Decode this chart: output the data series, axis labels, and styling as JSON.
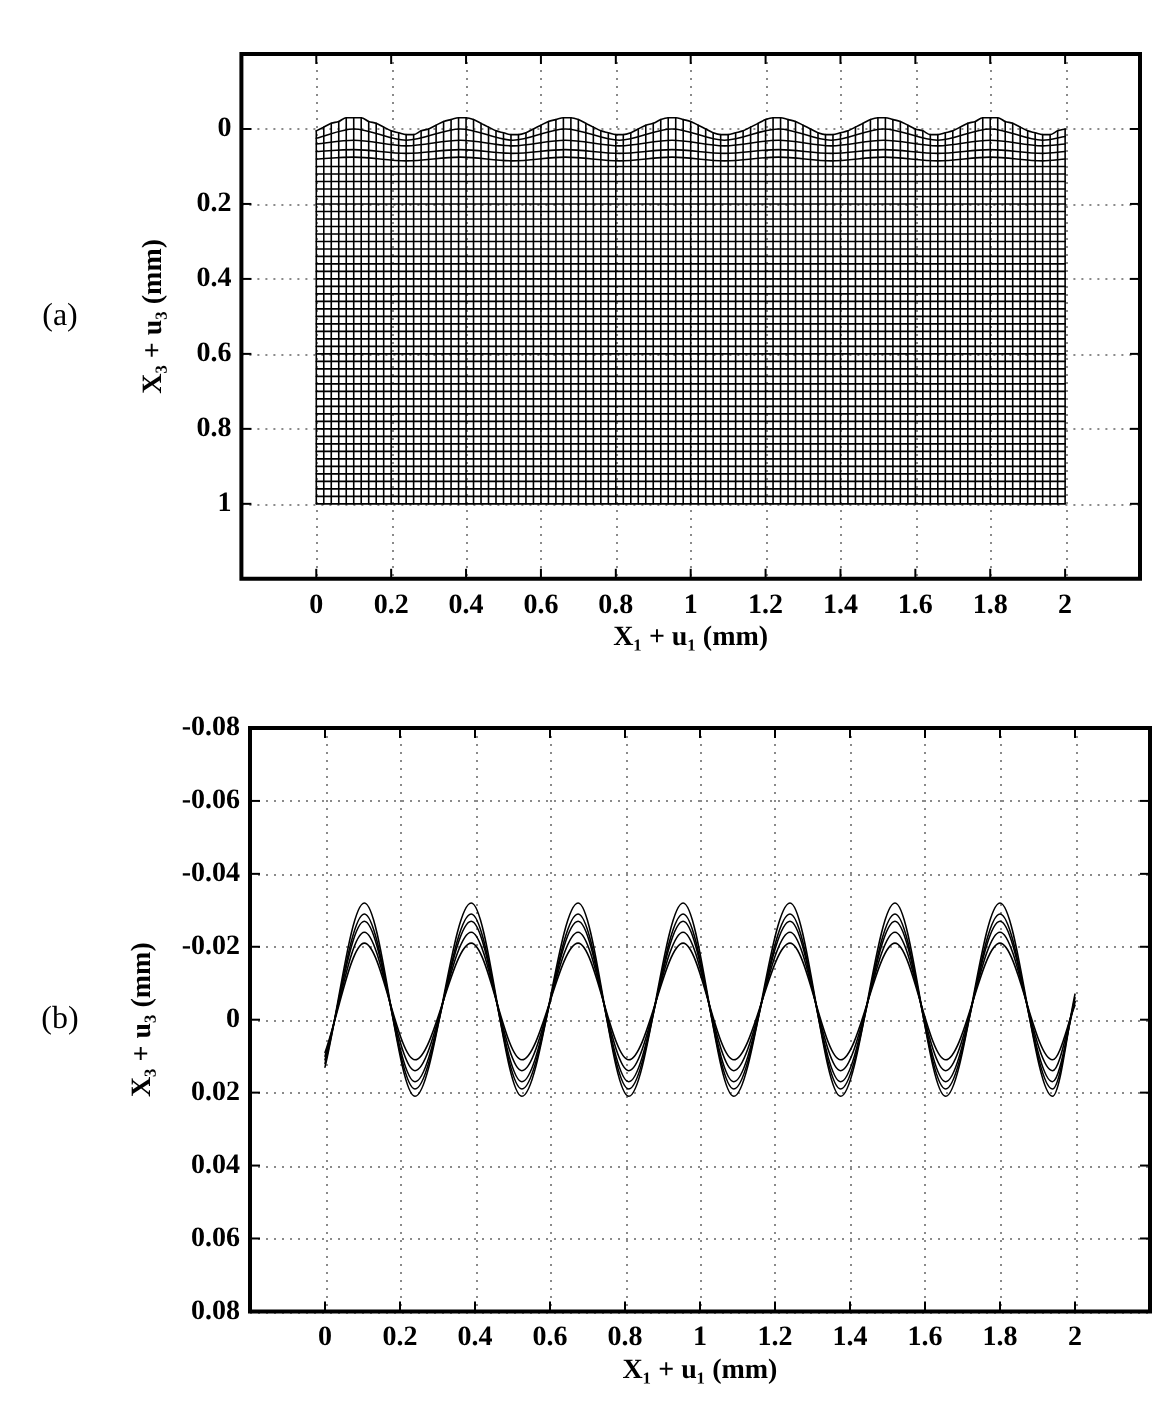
{
  "chart_data": [
    {
      "type": "line",
      "annotations": [
        "(a)"
      ],
      "xlabel": "X₁ + u₁ (mm)",
      "ylabel": "X₃ + u₃ (mm)",
      "xlim": [
        -0.2,
        2.2
      ],
      "ylim": [
        1.2,
        -0.2
      ],
      "xticks": [
        0,
        0.2,
        0.4,
        0.6,
        0.8,
        1,
        1.2,
        1.4,
        1.6,
        1.8,
        2
      ],
      "yticks": [
        0,
        0.2,
        0.4,
        0.6,
        0.8,
        1
      ],
      "grid": true,
      "marker": "none",
      "x": [
        0,
        0.02,
        0.04,
        0.06,
        0.08,
        0.1,
        0.12,
        0.14,
        0.16,
        0.18,
        0.2,
        0.22,
        0.24,
        0.26,
        0.28,
        0.3,
        0.32,
        0.34,
        0.36,
        0.38,
        0.4,
        0.42,
        0.44,
        0.46,
        0.48,
        0.5,
        0.52,
        0.54,
        0.56,
        0.58,
        0.6,
        0.62,
        0.64,
        0.66,
        0.68,
        0.7,
        0.72,
        0.74,
        0.76,
        0.78,
        0.8,
        0.82,
        0.84,
        0.86,
        0.88,
        0.9,
        0.92,
        0.94,
        0.96,
        0.98,
        1,
        1.02,
        1.04,
        1.06,
        1.08,
        1.1,
        1.12,
        1.14,
        1.16,
        1.18,
        1.2,
        1.22,
        1.24,
        1.26,
        1.28,
        1.3,
        1.32,
        1.34,
        1.36,
        1.38,
        1.4,
        1.42,
        1.44,
        1.46,
        1.48,
        1.5,
        1.52,
        1.54,
        1.56,
        1.58,
        1.6,
        1.62,
        1.64,
        1.66,
        1.68,
        1.7,
        1.72,
        1.74,
        1.76,
        1.78,
        1.8,
        1.82,
        1.84,
        1.86,
        1.88,
        1.9,
        1.92,
        1.94,
        1.96,
        1.98,
        2
      ],
      "series": [
        {
          "color": "#000000",
          "values": [
            0.005,
            -0.005,
            -0.015,
            -0.02,
            -0.03,
            -0.03,
            -0.03,
            -0.02,
            -0.015,
            -0.005,
            0.005,
            0.01,
            0.015,
            0.015,
            0.005,
            0,
            -0.01,
            -0.02,
            -0.025,
            -0.03,
            -0.03,
            -0.025,
            -0.015,
            -0.005,
            0.005,
            0.01,
            0.015,
            0.015,
            0.01,
            0,
            -0.01,
            -0.02,
            -0.025,
            -0.03,
            -0.03,
            -0.025,
            -0.015,
            -0.005,
            0.005,
            0.01,
            0.015,
            0.015,
            0.01,
            0,
            -0.01,
            -0.015,
            -0.025,
            -0.03,
            -0.03,
            -0.025,
            -0.02,
            -0.01,
            0,
            0.01,
            0.015,
            0.015,
            0.01,
            0.005,
            -0.005,
            -0.015,
            -0.025,
            -0.03,
            -0.03,
            -0.025,
            -0.02,
            -0.01,
            0,
            0.01,
            0.015,
            0.015,
            0.01,
            0.005,
            -0.005,
            -0.015,
            -0.025,
            -0.03,
            -0.03,
            -0.025,
            -0.02,
            -0.01,
            0,
            0.005,
            0.015,
            0.015,
            0.01,
            0.005,
            -0.005,
            -0.015,
            -0.02,
            -0.03,
            -0.03,
            -0.03,
            -0.02,
            -0.015,
            -0.005,
            0.005,
            0.01,
            0.015,
            0.015,
            0.005,
            0
          ]
        },
        {
          "color": "#000000",
          "x": [
            0,
            0.1,
            0.24,
            0.385,
            0.525,
            0.665,
            0.81,
            0.95,
            1.09,
            1.235,
            1.375,
            1.515,
            1.66,
            1.8,
            1.94,
            2
          ],
          "values": [
            0.025,
            0,
            0.03,
            0,
            0.03,
            0,
            0.03,
            0,
            0.03,
            0,
            0.03,
            0,
            0.03,
            0,
            0.03,
            0.02
          ]
        },
        {
          "color": "#000000",
          "x": [
            0,
            0.1,
            0.24,
            0.385,
            0.525,
            0.665,
            0.81,
            0.95,
            1.09,
            1.235,
            1.375,
            1.515,
            1.66,
            1.8,
            1.94,
            2
          ],
          "values": [
            0.04,
            0.03,
            0.045,
            0.03,
            0.045,
            0.03,
            0.045,
            0.03,
            0.045,
            0.03,
            0.045,
            0.03,
            0.045,
            0.03,
            0.045,
            0.04
          ]
        },
        {
          "color": "#000000",
          "x": [
            0,
            0.1,
            0.24,
            0.385,
            0.525,
            0.665,
            0.81,
            0.95,
            1.09,
            1.235,
            1.375,
            1.515,
            1.66,
            1.8,
            1.94,
            2
          ],
          "values": [
            0.06,
            0.055,
            0.065,
            0.055,
            0.065,
            0.055,
            0.065,
            0.055,
            0.065,
            0.055,
            0.065,
            0.055,
            0.065,
            0.055,
            0.065,
            0.06
          ]
        },
        {
          "color": "#000000",
          "x": [
            0,
            0.1,
            0.24,
            0.385,
            0.525,
            0.665,
            0.81,
            0.95,
            1.09,
            1.235,
            1.375,
            1.515,
            1.66,
            1.8,
            1.94,
            2
          ],
          "values": [
            0.08,
            0.075,
            0.085,
            0.075,
            0.085,
            0.075,
            0.085,
            0.075,
            0.085,
            0.075,
            0.085,
            0.075,
            0.085,
            0.075,
            0.085,
            0.08
          ]
        },
        {
          "color": "#000000",
          "x": [
            0,
            2
          ],
          "values": [
            0.1,
            0.1
          ]
        },
        {
          "color": "#000000",
          "x": [
            0,
            2
          ],
          "values": [
            0.12,
            0.12
          ]
        },
        {
          "color": "#000000",
          "x": [
            0,
            2
          ],
          "values": [
            0.14,
            0.14
          ]
        },
        {
          "color": "#000000",
          "x": [
            0,
            2
          ],
          "values": [
            0.16,
            0.16
          ]
        },
        {
          "color": "#000000",
          "x": [
            0,
            2
          ],
          "values": [
            0.18,
            0.18
          ]
        },
        {
          "color": "#000000",
          "x": [
            0,
            2
          ],
          "values": [
            0.2,
            0.2
          ]
        },
        {
          "color": "#000000",
          "x": [
            0,
            2
          ],
          "values": [
            0.22,
            0.22
          ]
        },
        {
          "color": "#000000",
          "x": [
            0,
            2
          ],
          "values": [
            0.24,
            0.24
          ]
        },
        {
          "color": "#000000",
          "x": [
            0,
            2
          ],
          "values": [
            0.26,
            0.26
          ]
        },
        {
          "color": "#000000",
          "x": [
            0,
            2
          ],
          "values": [
            0.28,
            0.28
          ]
        },
        {
          "color": "#000000",
          "x": [
            0,
            2
          ],
          "values": [
            0.3,
            0.3
          ]
        },
        {
          "color": "#000000",
          "x": [
            0,
            2
          ],
          "values": [
            0.32,
            0.32
          ]
        },
        {
          "color": "#000000",
          "x": [
            0,
            2
          ],
          "values": [
            0.34,
            0.34
          ]
        },
        {
          "color": "#000000",
          "x": [
            0,
            2
          ],
          "values": [
            0.36,
            0.36
          ]
        },
        {
          "color": "#000000",
          "x": [
            0,
            2
          ],
          "values": [
            0.38,
            0.38
          ]
        },
        {
          "color": "#000000",
          "x": [
            0,
            2
          ],
          "values": [
            0.4,
            0.4
          ]
        },
        {
          "color": "#000000",
          "x": [
            0,
            2
          ],
          "values": [
            0.42,
            0.42
          ]
        },
        {
          "color": "#000000",
          "x": [
            0,
            2
          ],
          "values": [
            0.44,
            0.44
          ]
        },
        {
          "color": "#000000",
          "x": [
            0,
            2
          ],
          "values": [
            0.46,
            0.46
          ]
        },
        {
          "color": "#000000",
          "x": [
            0,
            2
          ],
          "values": [
            0.48,
            0.48
          ]
        },
        {
          "color": "#000000",
          "x": [
            0,
            2
          ],
          "values": [
            0.5,
            0.5
          ]
        },
        {
          "color": "#000000",
          "x": [
            0,
            2
          ],
          "values": [
            0.52,
            0.52
          ]
        },
        {
          "color": "#000000",
          "x": [
            0,
            2
          ],
          "values": [
            0.54,
            0.54
          ]
        },
        {
          "color": "#000000",
          "x": [
            0,
            2
          ],
          "values": [
            0.56,
            0.56
          ]
        },
        {
          "color": "#000000",
          "x": [
            0,
            2
          ],
          "values": [
            0.58,
            0.58
          ]
        },
        {
          "color": "#000000",
          "x": [
            0,
            2
          ],
          "values": [
            0.6,
            0.6
          ]
        },
        {
          "color": "#000000",
          "x": [
            0,
            2
          ],
          "values": [
            0.62,
            0.62
          ]
        },
        {
          "color": "#000000",
          "x": [
            0,
            2
          ],
          "values": [
            0.64,
            0.64
          ]
        },
        {
          "color": "#000000",
          "x": [
            0,
            2
          ],
          "values": [
            0.66,
            0.66
          ]
        },
        {
          "color": "#000000",
          "x": [
            0,
            2
          ],
          "values": [
            0.68,
            0.68
          ]
        },
        {
          "color": "#000000",
          "x": [
            0,
            2
          ],
          "values": [
            0.7,
            0.7
          ]
        },
        {
          "color": "#000000",
          "x": [
            0,
            2
          ],
          "values": [
            0.72,
            0.72
          ]
        },
        {
          "color": "#000000",
          "x": [
            0,
            2
          ],
          "values": [
            0.74,
            0.74
          ]
        },
        {
          "color": "#000000",
          "x": [
            0,
            2
          ],
          "values": [
            0.76,
            0.76
          ]
        },
        {
          "color": "#000000",
          "x": [
            0,
            2
          ],
          "values": [
            0.78,
            0.78
          ]
        },
        {
          "color": "#000000",
          "x": [
            0,
            2
          ],
          "values": [
            0.8,
            0.8
          ]
        },
        {
          "color": "#000000",
          "x": [
            0,
            2
          ],
          "values": [
            0.82,
            0.82
          ]
        },
        {
          "color": "#000000",
          "x": [
            0,
            2
          ],
          "values": [
            0.84,
            0.84
          ]
        },
        {
          "color": "#000000",
          "x": [
            0,
            2
          ],
          "values": [
            0.86,
            0.86
          ]
        },
        {
          "color": "#000000",
          "x": [
            0,
            2
          ],
          "values": [
            0.88,
            0.88
          ]
        },
        {
          "color": "#000000",
          "x": [
            0,
            2
          ],
          "values": [
            0.9,
            0.9
          ]
        },
        {
          "color": "#000000",
          "x": [
            0,
            2
          ],
          "values": [
            0.92,
            0.92
          ]
        },
        {
          "color": "#000000",
          "x": [
            0,
            2
          ],
          "values": [
            0.94,
            0.94
          ]
        },
        {
          "color": "#000000",
          "x": [
            0,
            2
          ],
          "values": [
            0.96,
            0.96
          ]
        },
        {
          "color": "#000000",
          "x": [
            0,
            2
          ],
          "values": [
            0.98,
            0.98
          ]
        },
        {
          "color": "#000000",
          "x": [
            0,
            2
          ],
          "values": [
            1,
            1
          ]
        },
        {
          "color": "#000000",
          "x": [
            0,
            0
          ],
          "values": [
            0.005,
            1
          ]
        },
        {
          "color": "#000000",
          "x": [
            0.02,
            0.02
          ],
          "values": [
            -0.005,
            1
          ]
        },
        {
          "color": "#000000",
          "x": [
            0.04,
            0.04
          ],
          "values": [
            -0.015,
            1
          ]
        },
        {
          "color": "#000000",
          "x": [
            0.06,
            0.06
          ],
          "values": [
            -0.02,
            1
          ]
        },
        {
          "color": "#000000",
          "x": [
            0.08,
            0.08
          ],
          "values": [
            -0.03,
            1
          ]
        },
        {
          "color": "#000000",
          "x": [
            0.1,
            0.1
          ],
          "values": [
            -0.03,
            1
          ]
        },
        {
          "color": "#000000",
          "x": [
            0.12,
            0.12
          ],
          "values": [
            -0.03,
            1
          ]
        },
        {
          "color": "#000000",
          "x": [
            0.14,
            0.14
          ],
          "values": [
            -0.02,
            1
          ]
        },
        {
          "color": "#000000",
          "x": [
            0.16,
            0.16
          ],
          "values": [
            -0.015,
            1
          ]
        },
        {
          "color": "#000000",
          "x": [
            0.18,
            0.18
          ],
          "values": [
            -0.005,
            1
          ]
        },
        {
          "color": "#000000",
          "x": [
            0.2,
            0.2
          ],
          "values": [
            0.005,
            1
          ]
        },
        {
          "color": "#000000",
          "x": [
            0.22,
            0.22
          ],
          "values": [
            0.01,
            1
          ]
        },
        {
          "color": "#000000",
          "x": [
            0.24,
            0.24
          ],
          "values": [
            0.015,
            1
          ]
        },
        {
          "color": "#000000",
          "x": [
            0.26,
            0.26
          ],
          "values": [
            0.015,
            1
          ]
        },
        {
          "color": "#000000",
          "x": [
            0.28,
            0.28
          ],
          "values": [
            0.005,
            1
          ]
        },
        {
          "color": "#000000",
          "x": [
            0.3,
            0.3
          ],
          "values": [
            0,
            1
          ]
        },
        {
          "color": "#000000",
          "x": [
            0.32,
            0.32
          ],
          "values": [
            -0.01,
            1
          ]
        },
        {
          "color": "#000000",
          "x": [
            0.34,
            0.34
          ],
          "values": [
            -0.02,
            1
          ]
        },
        {
          "color": "#000000",
          "x": [
            0.36,
            0.36
          ],
          "values": [
            -0.025,
            1
          ]
        },
        {
          "color": "#000000",
          "x": [
            0.38,
            0.38
          ],
          "values": [
            -0.03,
            1
          ]
        },
        {
          "color": "#000000",
          "x": [
            0.4,
            0.4
          ],
          "values": [
            -0.03,
            1
          ]
        },
        {
          "color": "#000000",
          "x": [
            0.42,
            0.42
          ],
          "values": [
            -0.025,
            1
          ]
        },
        {
          "color": "#000000",
          "x": [
            0.44,
            0.44
          ],
          "values": [
            -0.015,
            1
          ]
        },
        {
          "color": "#000000",
          "x": [
            0.46,
            0.46
          ],
          "values": [
            -0.005,
            1
          ]
        },
        {
          "color": "#000000",
          "x": [
            0.48,
            0.48
          ],
          "values": [
            0.005,
            1
          ]
        },
        {
          "color": "#000000",
          "x": [
            0.5,
            0.5
          ],
          "values": [
            0.01,
            1
          ]
        },
        {
          "color": "#000000",
          "x": [
            0.52,
            0.52
          ],
          "values": [
            0.015,
            1
          ]
        },
        {
          "color": "#000000",
          "x": [
            0.54,
            0.54
          ],
          "values": [
            0.015,
            1
          ]
        },
        {
          "color": "#000000",
          "x": [
            0.56,
            0.56
          ],
          "values": [
            0.01,
            1
          ]
        },
        {
          "color": "#000000",
          "x": [
            0.58,
            0.58
          ],
          "values": [
            0,
            1
          ]
        },
        {
          "color": "#000000",
          "x": [
            0.6,
            0.6
          ],
          "values": [
            -0.01,
            1
          ]
        },
        {
          "color": "#000000",
          "x": [
            0.62,
            0.62
          ],
          "values": [
            -0.02,
            1
          ]
        },
        {
          "color": "#000000",
          "x": [
            0.64,
            0.64
          ],
          "values": [
            -0.025,
            1
          ]
        },
        {
          "color": "#000000",
          "x": [
            0.66,
            0.66
          ],
          "values": [
            -0.03,
            1
          ]
        },
        {
          "color": "#000000",
          "x": [
            0.68,
            0.68
          ],
          "values": [
            -0.03,
            1
          ]
        },
        {
          "color": "#000000",
          "x": [
            0.7,
            0.7
          ],
          "values": [
            -0.025,
            1
          ]
        },
        {
          "color": "#000000",
          "x": [
            0.72,
            0.72
          ],
          "values": [
            -0.015,
            1
          ]
        },
        {
          "color": "#000000",
          "x": [
            0.74,
            0.74
          ],
          "values": [
            -0.005,
            1
          ]
        },
        {
          "color": "#000000",
          "x": [
            0.76,
            0.76
          ],
          "values": [
            0.005,
            1
          ]
        },
        {
          "color": "#000000",
          "x": [
            0.78,
            0.78
          ],
          "values": [
            0.01,
            1
          ]
        },
        {
          "color": "#000000",
          "x": [
            0.8,
            0.8
          ],
          "values": [
            0.015,
            1
          ]
        },
        {
          "color": "#000000",
          "x": [
            0.82,
            0.82
          ],
          "values": [
            0.015,
            1
          ]
        },
        {
          "color": "#000000",
          "x": [
            0.84,
            0.84
          ],
          "values": [
            0.01,
            1
          ]
        },
        {
          "color": "#000000",
          "x": [
            0.86,
            0.86
          ],
          "values": [
            0,
            1
          ]
        },
        {
          "color": "#000000",
          "x": [
            0.88,
            0.88
          ],
          "values": [
            -0.01,
            1
          ]
        },
        {
          "color": "#000000",
          "x": [
            0.9,
            0.9
          ],
          "values": [
            -0.015,
            1
          ]
        },
        {
          "color": "#000000",
          "x": [
            0.92,
            0.92
          ],
          "values": [
            -0.025,
            1
          ]
        },
        {
          "color": "#000000",
          "x": [
            0.94,
            0.94
          ],
          "values": [
            -0.03,
            1
          ]
        },
        {
          "color": "#000000",
          "x": [
            0.96,
            0.96
          ],
          "values": [
            -0.03,
            1
          ]
        },
        {
          "color": "#000000",
          "x": [
            0.98,
            0.98
          ],
          "values": [
            -0.025,
            1
          ]
        },
        {
          "color": "#000000",
          "x": [
            1,
            1
          ],
          "values": [
            -0.02,
            1
          ]
        },
        {
          "color": "#000000",
          "x": [
            1.02,
            1.02
          ],
          "values": [
            -0.01,
            1
          ]
        },
        {
          "color": "#000000",
          "x": [
            1.04,
            1.04
          ],
          "values": [
            0,
            1
          ]
        },
        {
          "color": "#000000",
          "x": [
            1.06,
            1.06
          ],
          "values": [
            0.01,
            1
          ]
        },
        {
          "color": "#000000",
          "x": [
            1.08,
            1.08
          ],
          "values": [
            0.015,
            1
          ]
        },
        {
          "color": "#000000",
          "x": [
            1.1,
            1.1
          ],
          "values": [
            0.015,
            1
          ]
        },
        {
          "color": "#000000",
          "x": [
            1.12,
            1.12
          ],
          "values": [
            0.01,
            1
          ]
        },
        {
          "color": "#000000",
          "x": [
            1.14,
            1.14
          ],
          "values": [
            0.005,
            1
          ]
        },
        {
          "color": "#000000",
          "x": [
            1.16,
            1.16
          ],
          "values": [
            -0.005,
            1
          ]
        },
        {
          "color": "#000000",
          "x": [
            1.18,
            1.18
          ],
          "values": [
            -0.015,
            1
          ]
        },
        {
          "color": "#000000",
          "x": [
            1.2,
            1.2
          ],
          "values": [
            -0.025,
            1
          ]
        },
        {
          "color": "#000000",
          "x": [
            1.22,
            1.22
          ],
          "values": [
            -0.03,
            1
          ]
        },
        {
          "color": "#000000",
          "x": [
            1.24,
            1.24
          ],
          "values": [
            -0.03,
            1
          ]
        },
        {
          "color": "#000000",
          "x": [
            1.26,
            1.26
          ],
          "values": [
            -0.025,
            1
          ]
        },
        {
          "color": "#000000",
          "x": [
            1.28,
            1.28
          ],
          "values": [
            -0.02,
            1
          ]
        },
        {
          "color": "#000000",
          "x": [
            1.3,
            1.3
          ],
          "values": [
            -0.01,
            1
          ]
        },
        {
          "color": "#000000",
          "x": [
            1.32,
            1.32
          ],
          "values": [
            0,
            1
          ]
        },
        {
          "color": "#000000",
          "x": [
            1.34,
            1.34
          ],
          "values": [
            0.01,
            1
          ]
        },
        {
          "color": "#000000",
          "x": [
            1.36,
            1.36
          ],
          "values": [
            0.015,
            1
          ]
        },
        {
          "color": "#000000",
          "x": [
            1.38,
            1.38
          ],
          "values": [
            0.015,
            1
          ]
        },
        {
          "color": "#000000",
          "x": [
            1.4,
            1.4
          ],
          "values": [
            0.01,
            1
          ]
        },
        {
          "color": "#000000",
          "x": [
            1.42,
            1.42
          ],
          "values": [
            0.005,
            1
          ]
        },
        {
          "color": "#000000",
          "x": [
            1.44,
            1.44
          ],
          "values": [
            -0.005,
            1
          ]
        },
        {
          "color": "#000000",
          "x": [
            1.46,
            1.46
          ],
          "values": [
            -0.015,
            1
          ]
        },
        {
          "color": "#000000",
          "x": [
            1.48,
            1.48
          ],
          "values": [
            -0.025,
            1
          ]
        },
        {
          "color": "#000000",
          "x": [
            1.5,
            1.5
          ],
          "values": [
            -0.03,
            1
          ]
        },
        {
          "color": "#000000",
          "x": [
            1.52,
            1.52
          ],
          "values": [
            -0.03,
            1
          ]
        },
        {
          "color": "#000000",
          "x": [
            1.54,
            1.54
          ],
          "values": [
            -0.025,
            1
          ]
        },
        {
          "color": "#000000",
          "x": [
            1.56,
            1.56
          ],
          "values": [
            -0.02,
            1
          ]
        },
        {
          "color": "#000000",
          "x": [
            1.58,
            1.58
          ],
          "values": [
            -0.01,
            1
          ]
        },
        {
          "color": "#000000",
          "x": [
            1.6,
            1.6
          ],
          "values": [
            0,
            1
          ]
        },
        {
          "color": "#000000",
          "x": [
            1.62,
            1.62
          ],
          "values": [
            0.005,
            1
          ]
        },
        {
          "color": "#000000",
          "x": [
            1.64,
            1.64
          ],
          "values": [
            0.015,
            1
          ]
        },
        {
          "color": "#000000",
          "x": [
            1.66,
            1.66
          ],
          "values": [
            0.015,
            1
          ]
        },
        {
          "color": "#000000",
          "x": [
            1.68,
            1.68
          ],
          "values": [
            0.01,
            1
          ]
        },
        {
          "color": "#000000",
          "x": [
            1.7,
            1.7
          ],
          "values": [
            0.005,
            1
          ]
        },
        {
          "color": "#000000",
          "x": [
            1.72,
            1.72
          ],
          "values": [
            -0.005,
            1
          ]
        },
        {
          "color": "#000000",
          "x": [
            1.74,
            1.74
          ],
          "values": [
            -0.015,
            1
          ]
        },
        {
          "color": "#000000",
          "x": [
            1.76,
            1.76
          ],
          "values": [
            -0.02,
            1
          ]
        },
        {
          "color": "#000000",
          "x": [
            1.78,
            1.78
          ],
          "values": [
            -0.03,
            1
          ]
        },
        {
          "color": "#000000",
          "x": [
            1.8,
            1.8
          ],
          "values": [
            -0.03,
            1
          ]
        },
        {
          "color": "#000000",
          "x": [
            1.82,
            1.82
          ],
          "values": [
            -0.03,
            1
          ]
        },
        {
          "color": "#000000",
          "x": [
            1.84,
            1.84
          ],
          "values": [
            -0.02,
            1
          ]
        },
        {
          "color": "#000000",
          "x": [
            1.86,
            1.86
          ],
          "values": [
            -0.015,
            1
          ]
        },
        {
          "color": "#000000",
          "x": [
            1.88,
            1.88
          ],
          "values": [
            -0.005,
            1
          ]
        },
        {
          "color": "#000000",
          "x": [
            1.9,
            1.9
          ],
          "values": [
            0.005,
            1
          ]
        },
        {
          "color": "#000000",
          "x": [
            1.92,
            1.92
          ],
          "values": [
            0.01,
            1
          ]
        },
        {
          "color": "#000000",
          "x": [
            1.94,
            1.94
          ],
          "values": [
            0.015,
            1
          ]
        },
        {
          "color": "#000000",
          "x": [
            1.96,
            1.96
          ],
          "values": [
            0.015,
            1
          ]
        },
        {
          "color": "#000000",
          "x": [
            1.98,
            1.98
          ],
          "values": [
            0.005,
            1
          ]
        },
        {
          "color": "#000000",
          "x": [
            2,
            2
          ],
          "values": [
            0,
            1
          ]
        }
      ]
    },
    {
      "type": "line",
      "annotations": [
        "(b)"
      ],
      "xlabel": "X₁ + u₁ (mm)",
      "ylabel": "X₃ + u₃ (mm)",
      "xlim": [
        -0.2,
        2.2
      ],
      "ylim": [
        0.08,
        -0.08
      ],
      "xticks": [
        0,
        0.2,
        0.4,
        0.6,
        0.8,
        1,
        1.2,
        1.4,
        1.6,
        1.8,
        2
      ],
      "yticks": [
        -0.08,
        -0.06,
        -0.04,
        -0.02,
        0,
        0.02,
        0.04,
        0.06,
        0.08
      ],
      "grid": true,
      "marker": "none",
      "x": [
        0,
        0.105,
        0.24,
        0.39,
        0.525,
        0.675,
        0.81,
        0.955,
        1.09,
        1.24,
        1.375,
        1.52,
        1.655,
        1.8,
        1.94,
        2
      ],
      "series": [
        {
          "color": "#000000",
          "values": [
            0.013,
            -0.032,
            0.021,
            -0.032,
            0.021,
            -0.032,
            0.021,
            -0.032,
            0.021,
            -0.032,
            0.021,
            -0.032,
            0.021,
            -0.032,
            0.021,
            -0.007
          ]
        },
        {
          "color": "#000000",
          "values": [
            0.012,
            -0.029,
            0.019,
            -0.029,
            0.019,
            -0.029,
            0.019,
            -0.029,
            0.019,
            -0.029,
            0.019,
            -0.029,
            0.019,
            -0.029,
            0.019,
            -0.006
          ]
        },
        {
          "color": "#000000",
          "values": [
            0.011,
            -0.027,
            0.017,
            -0.027,
            0.017,
            -0.027,
            0.017,
            -0.027,
            0.017,
            -0.027,
            0.017,
            -0.027,
            0.017,
            -0.027,
            0.017,
            -0.005
          ]
        },
        {
          "color": "#000000",
          "values": [
            0.01,
            -0.024,
            0.014,
            -0.024,
            0.014,
            -0.024,
            0.014,
            -0.024,
            0.014,
            -0.024,
            0.014,
            -0.024,
            0.014,
            -0.024,
            0.014,
            -0.005
          ]
        },
        {
          "color": "#000000",
          "values": [
            0.009,
            -0.021,
            0.011,
            -0.021,
            0.011,
            -0.021,
            0.011,
            -0.021,
            0.011,
            -0.021,
            0.011,
            -0.021,
            0.011,
            -0.021,
            0.011,
            -0.004
          ]
        }
      ]
    }
  ]
}
